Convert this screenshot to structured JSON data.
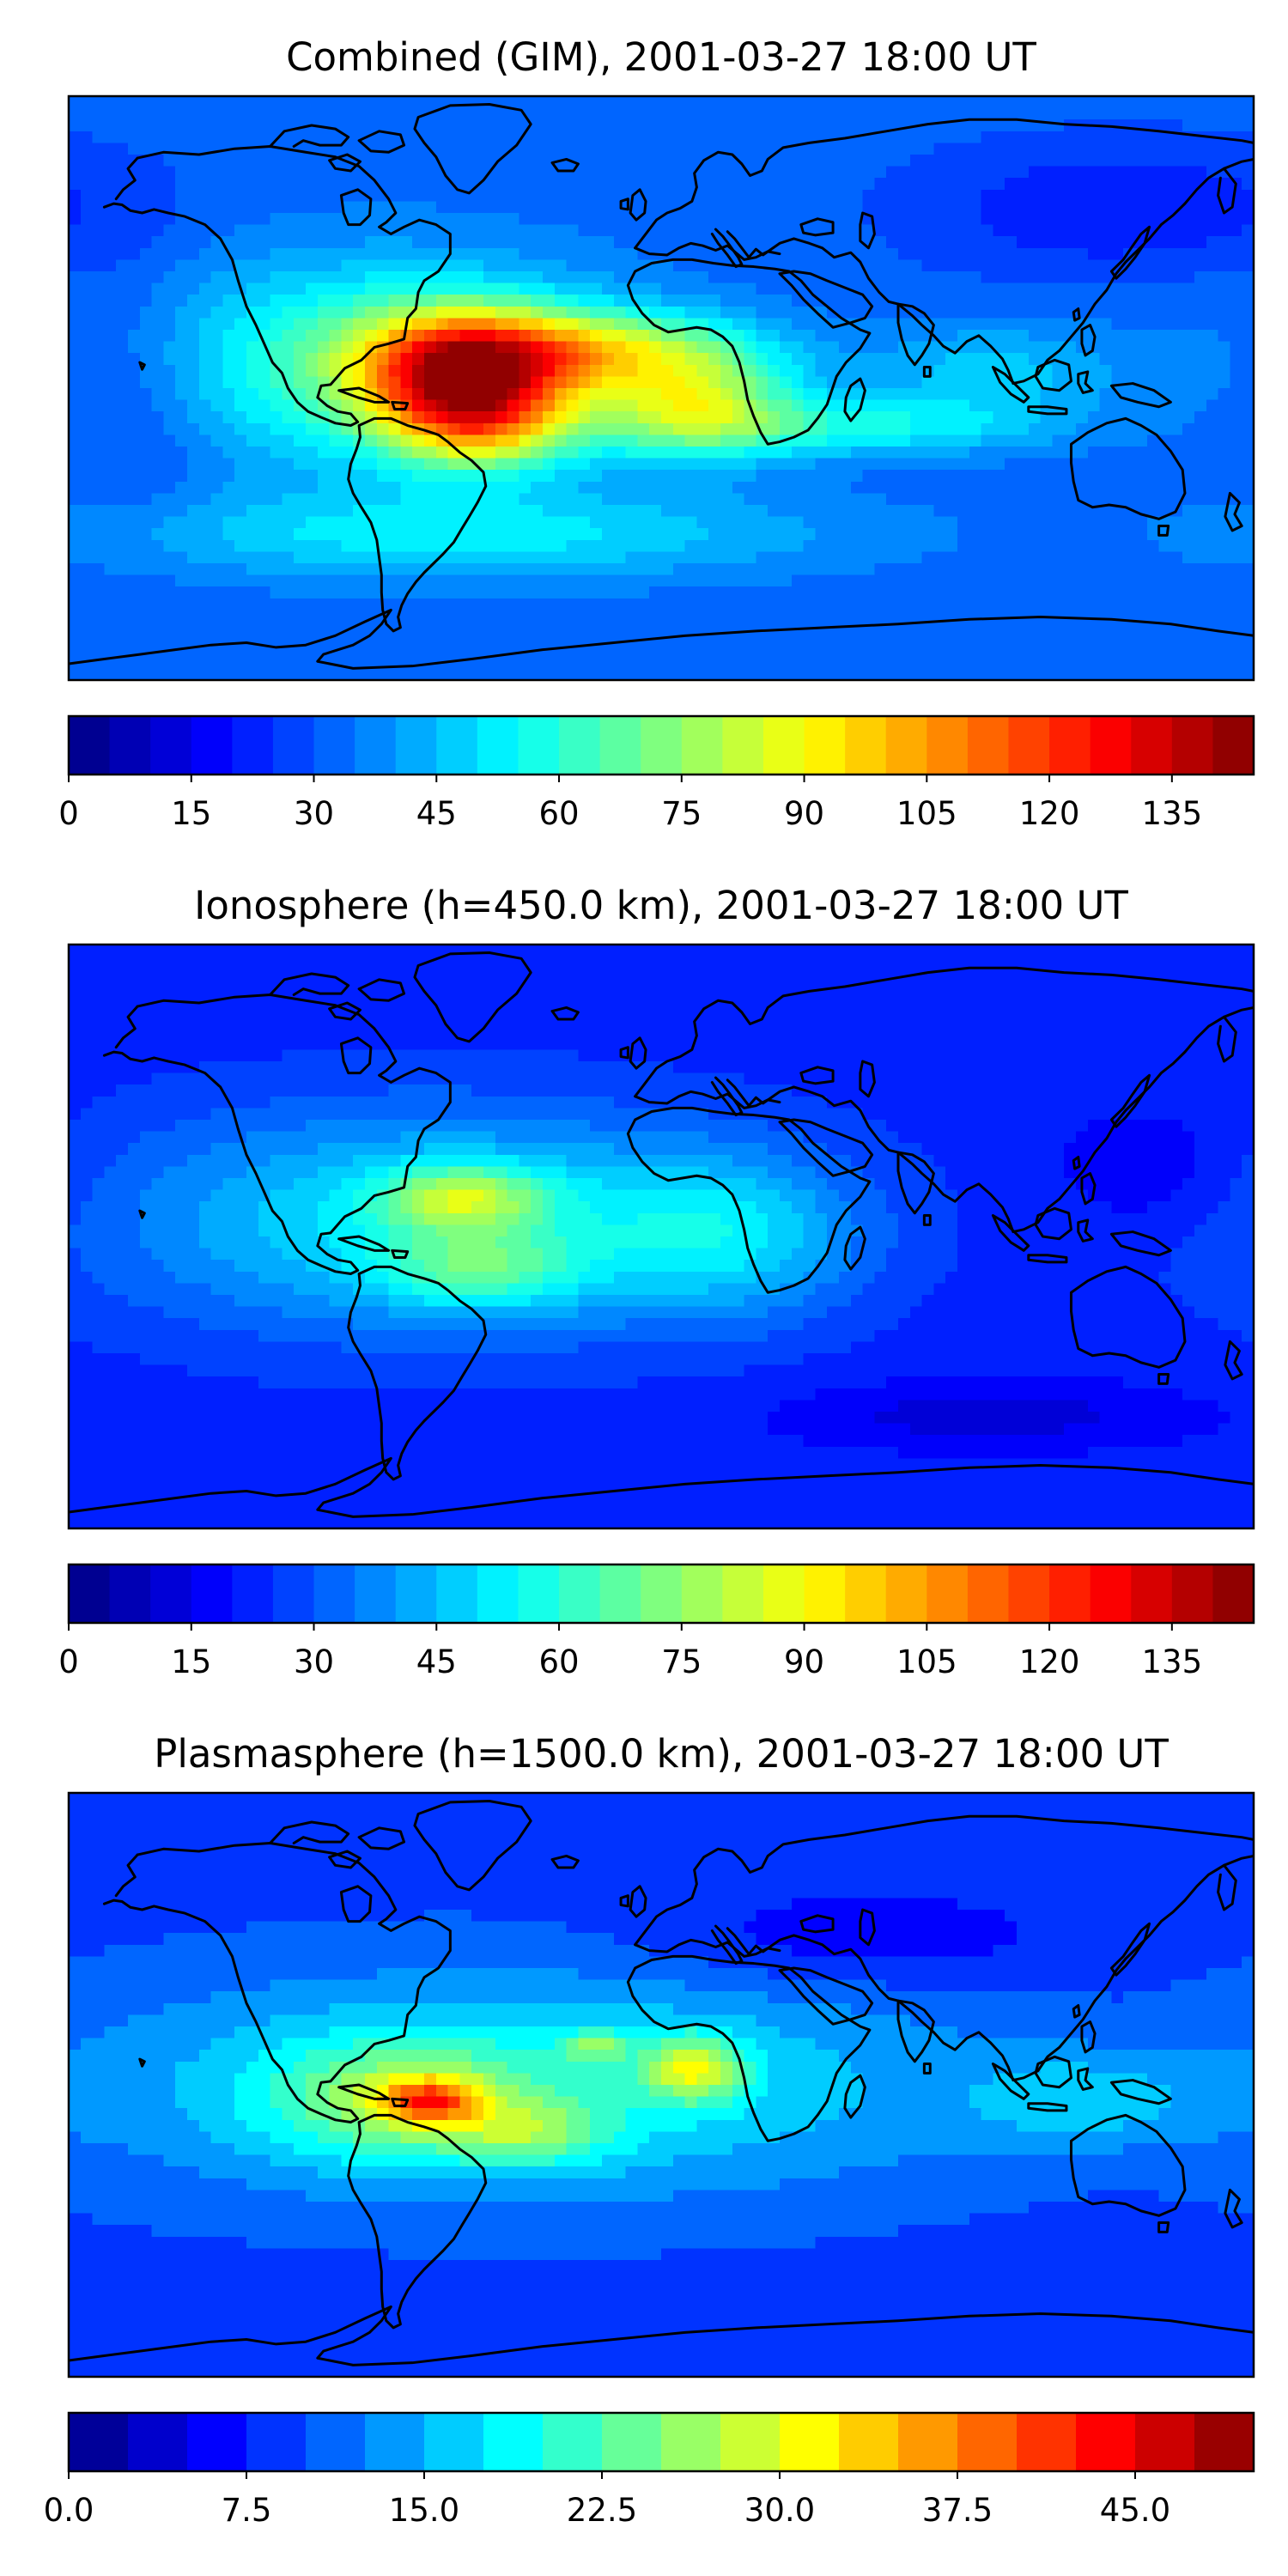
{
  "colormap": "jet",
  "colors": {
    "jet_stops": [
      "#00007f",
      "#0000ff",
      "#007fff",
      "#00ffff",
      "#7fff7f",
      "#ffff00",
      "#ff7f00",
      "#ff0000",
      "#7f0000"
    ],
    "coastline": "#000000",
    "frame": "#000000",
    "ocean_base": "#0a2ff0"
  },
  "panels": [
    {
      "id": "combined",
      "title": "Combined (GIM), 2001-03-27 18:00 UT",
      "colorbar": {
        "vmin": 0,
        "vmax": 145,
        "levels": 29,
        "ticks": [
          0,
          15,
          30,
          45,
          60,
          75,
          90,
          105,
          120,
          135
        ],
        "tick_labels": [
          "0",
          "15",
          "30",
          "45",
          "60",
          "75",
          "90",
          "105",
          "120",
          "135"
        ]
      },
      "field": {
        "background": 32,
        "blobs": [
          {
            "lon": -90,
            "lat": 8,
            "rlon": 75,
            "rlat": 32,
            "amp": 30
          },
          {
            "lon": -60,
            "lat": 5,
            "rlon": 32,
            "rlat": 18,
            "amp": 78
          },
          {
            "lon": -55,
            "lat": -12,
            "rlon": 28,
            "rlat": 14,
            "amp": 42
          },
          {
            "lon": -20,
            "lat": 12,
            "rlon": 45,
            "rlat": 12,
            "amp": 40
          },
          {
            "lon": 10,
            "lat": -5,
            "rlon": 30,
            "rlat": 16,
            "amp": 45
          },
          {
            "lon": 60,
            "lat": -12,
            "rlon": 55,
            "rlat": 9,
            "amp": 22
          },
          {
            "lon": 100,
            "lat": 5,
            "rlon": 40,
            "rlat": 15,
            "amp": 15
          },
          {
            "lon": -60,
            "lat": -45,
            "rlon": 110,
            "rlat": 14,
            "amp": 20
          },
          {
            "lon": -160,
            "lat": 0,
            "rlon": 25,
            "rlat": 40,
            "amp": -10
          },
          {
            "lon": 140,
            "lat": 55,
            "rlon": 60,
            "rlat": 20,
            "amp": -12
          }
        ]
      }
    },
    {
      "id": "ionosphere",
      "title": "Ionosphere  (h=450.0 km), 2001-03-27 18:00 UT",
      "colorbar": {
        "vmin": 0,
        "vmax": 145,
        "levels": 29,
        "ticks": [
          0,
          15,
          30,
          45,
          60,
          75,
          90,
          105,
          120,
          135
        ],
        "tick_labels": [
          "0",
          "15",
          "30",
          "45",
          "60",
          "75",
          "90",
          "105",
          "120",
          "135"
        ]
      },
      "field": {
        "background": 22,
        "blobs": [
          {
            "lon": -70,
            "lat": 5,
            "rlon": 100,
            "rlat": 35,
            "amp": 30
          },
          {
            "lon": -60,
            "lat": 12,
            "rlon": 25,
            "rlat": 10,
            "amp": 35
          },
          {
            "lon": -55,
            "lat": -10,
            "rlon": 30,
            "rlat": 12,
            "amp": 25
          },
          {
            "lon": 20,
            "lat": 0,
            "rlon": 40,
            "rlat": 25,
            "amp": 20
          },
          {
            "lon": 150,
            "lat": 20,
            "rlon": 30,
            "rlat": 20,
            "amp": -8
          },
          {
            "lon": 100,
            "lat": -55,
            "rlon": 60,
            "rlat": 10,
            "amp": -10
          }
        ]
      }
    },
    {
      "id": "plasmasphere",
      "title": "Plasmasphere (h=1500.0 km), 2001-03-27 18:00 UT",
      "colorbar": {
        "vmin": 0,
        "vmax": 50,
        "levels": 20,
        "ticks": [
          0,
          7.5,
          15,
          22.5,
          30,
          37.5,
          45
        ],
        "tick_labels": [
          "0.0",
          "7.5",
          "15.0",
          "22.5",
          "30.0",
          "37.5",
          "45.0"
        ]
      },
      "field": {
        "background": 9,
        "blobs": [
          {
            "lon": -40,
            "lat": 0,
            "rlon": 140,
            "rlat": 35,
            "amp": 10
          },
          {
            "lon": -80,
            "lat": -5,
            "rlon": 40,
            "rlat": 18,
            "amp": 10
          },
          {
            "lon": -70,
            "lat": -5,
            "rlon": 15,
            "rlat": 7,
            "amp": 15
          },
          {
            "lon": -40,
            "lat": -15,
            "rlon": 25,
            "rlat": 10,
            "amp": 8
          },
          {
            "lon": 10,
            "lat": 5,
            "rlon": 15,
            "rlat": 10,
            "amp": 14
          },
          {
            "lon": -20,
            "lat": 12,
            "rlon": 10,
            "rlat": 5,
            "amp": 8
          },
          {
            "lon": 130,
            "lat": -5,
            "rlon": 35,
            "rlat": 15,
            "amp": 6
          },
          {
            "lon": 60,
            "lat": 45,
            "rlon": 60,
            "rlat": 15,
            "amp": -4
          }
        ]
      }
    }
  ]
}
